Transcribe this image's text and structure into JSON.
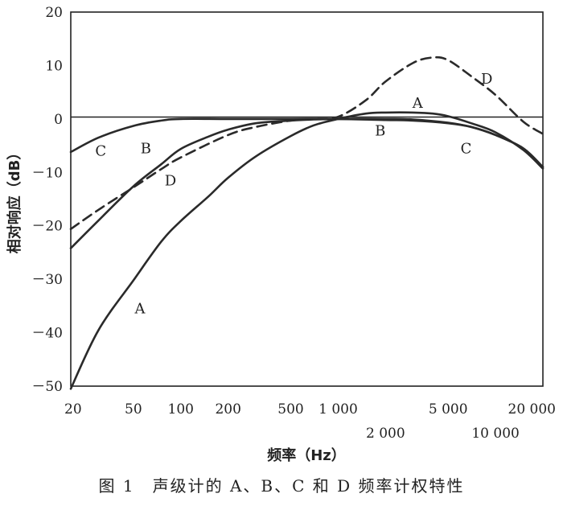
{
  "caption": "图 1　声级计的 A、B、C 和 D 频率计权特性",
  "chart_data": {
    "type": "line",
    "title": "",
    "xlabel": "频率（Hz）",
    "ylabel": "相对响应（dB）",
    "xscale": "log",
    "xlim": [
      20,
      20000
    ],
    "ylim": [
      -50,
      20
    ],
    "yticks": [
      20,
      10,
      0,
      -10,
      -20,
      -30,
      -40,
      -50
    ],
    "ytick_labels": [
      "20",
      "10",
      "0",
      "－10",
      "－20",
      "－30",
      "－40",
      "－50"
    ],
    "xticks_primary": [
      20,
      50,
      100,
      200,
      500,
      1000,
      5000,
      20000
    ],
    "xtick_labels_primary": [
      "20",
      "50",
      "100",
      "200",
      "500",
      "1 000",
      "5 000",
      "20 000"
    ],
    "xticks_secondary": [
      2000,
      10000
    ],
    "xtick_labels_secondary": [
      "2 000",
      "10 000"
    ],
    "series": [
      {
        "name": "A",
        "style": "solid",
        "x": [
          20,
          30,
          50,
          75,
          100,
          150,
          200,
          300,
          500,
          700,
          1000,
          1500,
          2000,
          3000,
          4000,
          5000,
          7000,
          10000,
          15000,
          20000
        ],
        "values": [
          -50.5,
          -39.5,
          -30.2,
          -23,
          -19.1,
          -14.5,
          -11,
          -7,
          -3.2,
          -1.2,
          0,
          1,
          1.2,
          1.2,
          1,
          0.5,
          -0.8,
          -2.5,
          -5.8,
          -9.3
        ]
      },
      {
        "name": "B",
        "style": "solid",
        "x": [
          20,
          30,
          50,
          75,
          100,
          150,
          200,
          300,
          500,
          700,
          1000,
          2000,
          3000,
          5000,
          7000,
          10000,
          15000,
          20000
        ],
        "values": [
          -24.2,
          -19,
          -12.6,
          -8.5,
          -5.6,
          -3.3,
          -2,
          -0.8,
          -0.3,
          -0.1,
          0,
          0,
          -0.1,
          -0.7,
          -1.5,
          -3,
          -5.5,
          -9
        ]
      },
      {
        "name": "C",
        "style": "solid",
        "x": [
          20,
          30,
          50,
          75,
          100,
          200,
          500,
          1000,
          2000,
          3000,
          5000,
          7000,
          10000,
          15000,
          20000
        ],
        "values": [
          -6.2,
          -3.5,
          -1.3,
          -0.3,
          0,
          0,
          0,
          0,
          -0.2,
          -0.3,
          -0.8,
          -1.5,
          -3,
          -5.5,
          -9
        ]
      },
      {
        "name": "D",
        "style": "dashed",
        "x": [
          20,
          30,
          50,
          75,
          100,
          200,
          300,
          500,
          700,
          1000,
          1500,
          2000,
          3000,
          4000,
          5000,
          7000,
          10000,
          15000,
          20000
        ],
        "values": [
          -20.6,
          -17,
          -12.8,
          -9.4,
          -7.2,
          -3,
          -1.5,
          -0.3,
          0,
          0.4,
          3.5,
          7,
          10.5,
          11.5,
          11,
          8,
          4.5,
          -0.5,
          -2.8
        ]
      }
    ],
    "annotations": [
      {
        "text": "C",
        "x": 31,
        "y": -6
      },
      {
        "text": "B",
        "x": 60,
        "y": -5.5
      },
      {
        "text": "D",
        "x": 86,
        "y": -11.5
      },
      {
        "text": "A",
        "x": 55,
        "y": -35.5
      },
      {
        "text": "A",
        "x": 3200,
        "y": 3
      },
      {
        "text": "B",
        "x": 1850,
        "y": -2.2
      },
      {
        "text": "C",
        "x": 6500,
        "y": -5.5
      },
      {
        "text": "D",
        "x": 8800,
        "y": 7.5
      }
    ]
  }
}
